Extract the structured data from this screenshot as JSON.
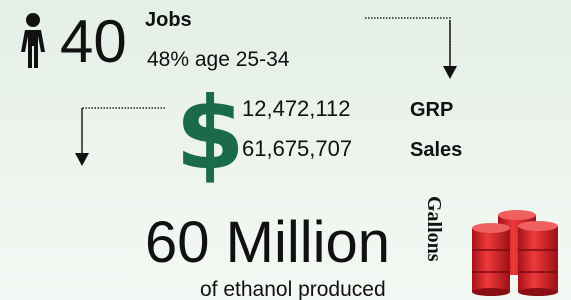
{
  "jobs": {
    "count": "40",
    "label": "Jobs",
    "detail": "48% age 25-34"
  },
  "money": {
    "items": [
      {
        "value": "12,472,112",
        "label": "GRP"
      },
      {
        "value": "61,675,707",
        "label": "Sales"
      }
    ]
  },
  "ethanol": {
    "amount": "60 Million",
    "detail": "of ethanol produced",
    "unit": "Gallons"
  }
}
